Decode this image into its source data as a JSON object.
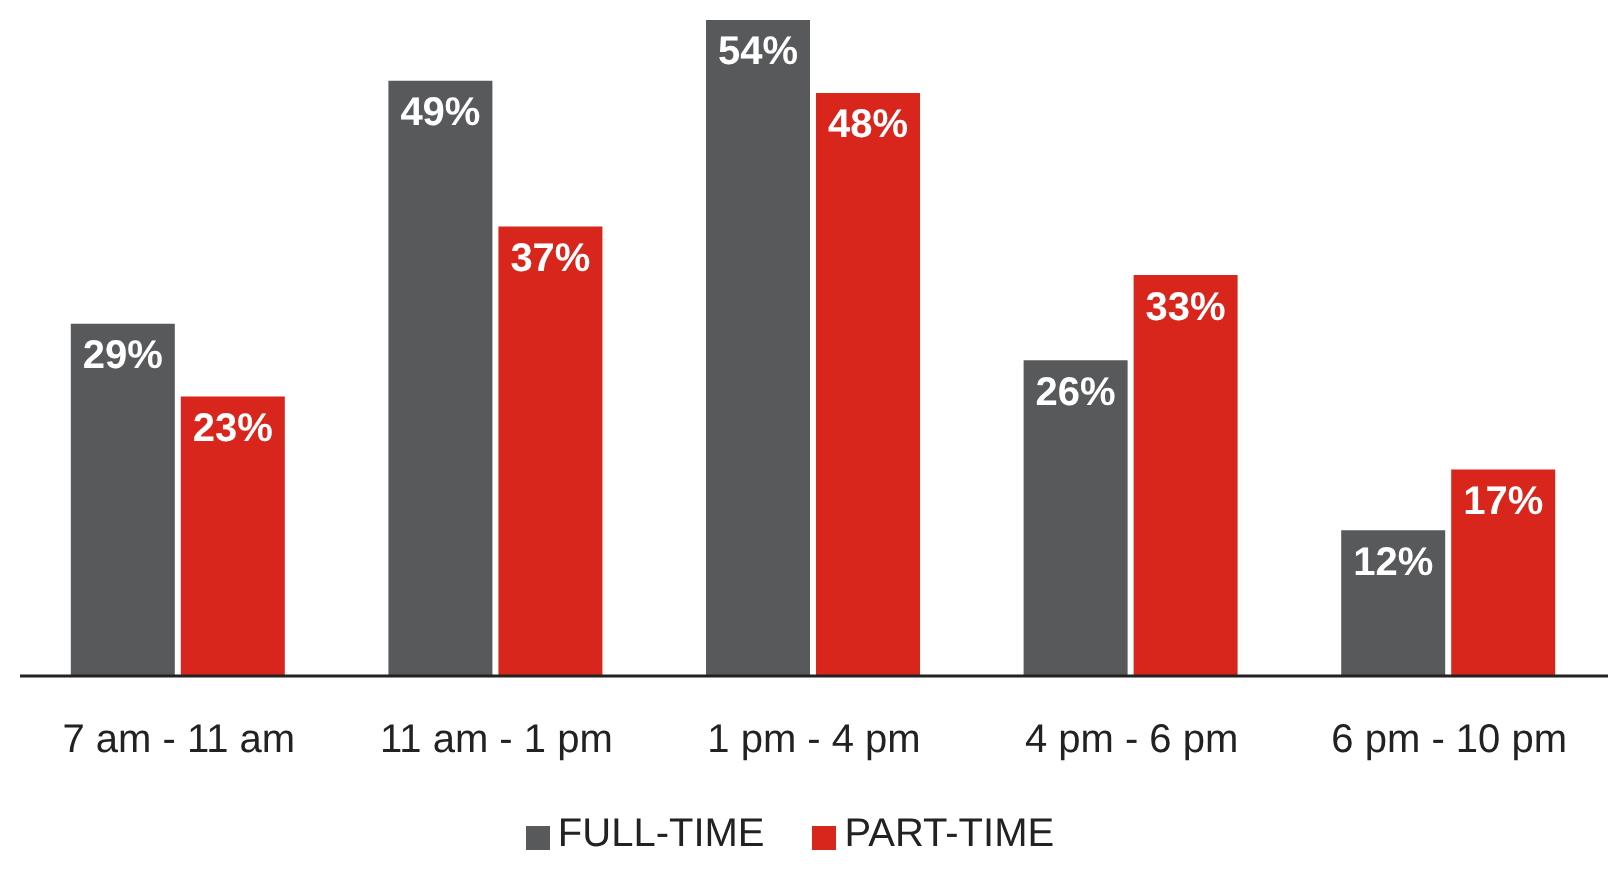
{
  "chart_data": {
    "type": "bar",
    "categories": [
      "7 am - 11 am",
      "11 am - 1 pm",
      "1 pm - 4 pm",
      "4 pm - 6 pm",
      "6 pm - 10 pm"
    ],
    "series": [
      {
        "name": "FULL-TIME",
        "color": "#58595b",
        "values": [
          29,
          49,
          54,
          26,
          12
        ],
        "value_labels": [
          "29%",
          "49%",
          "54%",
          "26%",
          "12%"
        ]
      },
      {
        "name": "PART-TIME",
        "color": "#d9261c",
        "values": [
          23,
          37,
          48,
          33,
          17
        ],
        "value_labels": [
          "23%",
          "37%",
          "48%",
          "33%",
          "17%"
        ]
      }
    ],
    "legend": "bottom",
    "grid": false
  }
}
